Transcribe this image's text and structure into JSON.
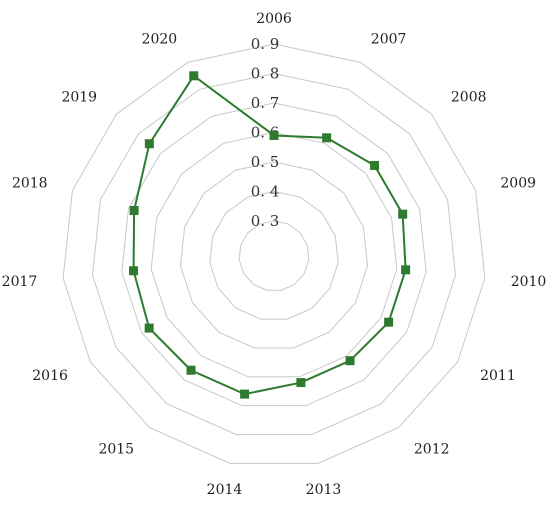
{
  "chart_data": {
    "type": "radar",
    "title": "",
    "categories": [
      "2006",
      "2007",
      "2008",
      "2009",
      "2010",
      "2011",
      "2012",
      "2013",
      "2014",
      "2015",
      "2016",
      "2017",
      "2018",
      "2019",
      "2020"
    ],
    "tick_labels": [
      "0. 3",
      "0. 4",
      "0. 5",
      "0. 6",
      "0. 7",
      "0. 8",
      "0. 9"
    ],
    "rlim": [
      0.3,
      0.9
    ],
    "ticks": [
      0.3,
      0.4,
      0.5,
      0.6,
      0.7,
      0.8,
      0.9
    ],
    "grid": true,
    "legend": "none",
    "series": [
      {
        "color": "#2e7a2e",
        "marker": "square",
        "values": [
          0.59,
          0.62,
          0.64,
          0.64,
          0.63,
          0.63,
          0.62,
          0.62,
          0.66,
          0.66,
          0.67,
          0.66,
          0.68,
          0.75,
          0.85
        ]
      }
    ]
  }
}
